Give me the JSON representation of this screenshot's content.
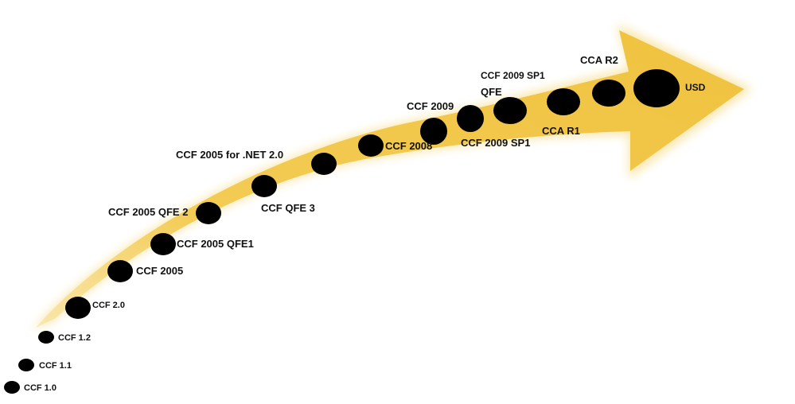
{
  "colors": {
    "arrow": "#f2c84b",
    "arrow_glow": "#f7dc8a",
    "node": "#000000",
    "text": "#111111"
  },
  "milestones": [
    {
      "id": "ccf10",
      "label": "CCF 1.0"
    },
    {
      "id": "ccf11",
      "label": "CCF 1.1"
    },
    {
      "id": "ccf12",
      "label": "CCF 1.2"
    },
    {
      "id": "ccf20",
      "label": "CCF 2.0"
    },
    {
      "id": "ccf2005",
      "label": "CCF 2005"
    },
    {
      "id": "ccf2005qfe1",
      "label": "CCF 2005 QFE1"
    },
    {
      "id": "ccf2005qfe2",
      "label": "CCF 2005 QFE 2"
    },
    {
      "id": "ccfqfe3",
      "label": "CCF QFE 3"
    },
    {
      "id": "ccf2005net20",
      "label": "CCF 2005 for .NET 2.0"
    },
    {
      "id": "ccf2008",
      "label": "CCF 2008"
    },
    {
      "id": "ccf2009",
      "label": "CCF 2009"
    },
    {
      "id": "qfe",
      "label": "QFE"
    },
    {
      "id": "ccf2009sp1",
      "label": "CCF 2009 SP1"
    },
    {
      "id": "ccf2009sp1qfe",
      "label": "CCF 2009 SP1"
    },
    {
      "id": "ccar1",
      "label": "CCA R1"
    },
    {
      "id": "ccar2",
      "label": "CCA R2"
    },
    {
      "id": "usd",
      "label": "USD"
    }
  ]
}
